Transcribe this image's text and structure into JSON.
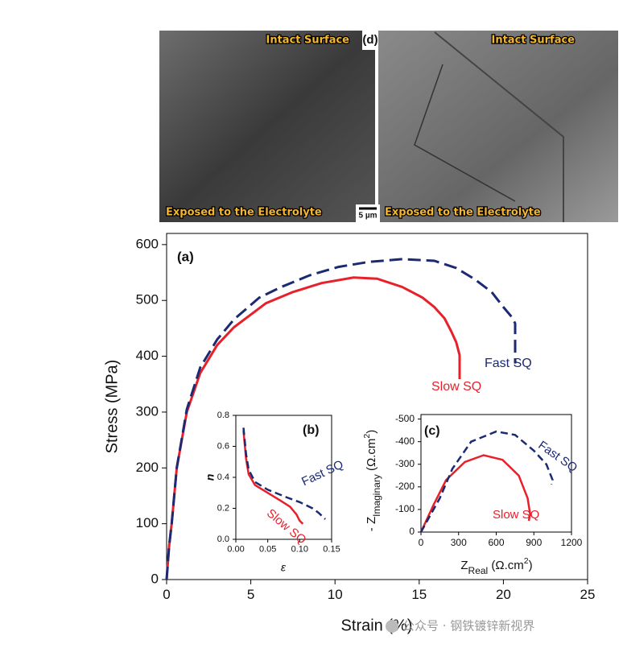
{
  "figure_panel": {
    "panel_label": "(d)",
    "left_top": "Intact Surface",
    "left_bottom": "Exposed to the Electrolyte",
    "right_top": "Intact Surface",
    "right_bottom": "Exposed to the Electrolyte",
    "scale_bar": "5 µm"
  },
  "watermark": "公众号 · 钢铁镀锌新视界",
  "chart_data": [
    {
      "type": "line",
      "panel_label": "(a)",
      "xlabel": "Strain (%)",
      "ylabel": "Stress (MPa)",
      "xlim": [
        0,
        25
      ],
      "ylim": [
        0,
        620
      ],
      "xticks": [
        0,
        5,
        10,
        15,
        20,
        25
      ],
      "yticks": [
        0,
        100,
        200,
        300,
        400,
        500,
        600
      ],
      "series": [
        {
          "name": "Slow SQ",
          "color": "#e8202a",
          "linestyle": "solid",
          "x": [
            0,
            0.15,
            0.3,
            0.6,
            1.2,
            2,
            3,
            4,
            5.9,
            7.5,
            9.2,
            11.1,
            12.5,
            14,
            15.2,
            15.9,
            16.5,
            16.9,
            17.2,
            17.4,
            17.4
          ],
          "values": [
            0,
            60,
            100,
            200,
            300,
            370,
            420,
            452,
            495,
            515,
            531,
            541,
            539,
            524,
            505,
            488,
            468,
            445,
            425,
            402,
            359
          ]
        },
        {
          "name": "Fast SQ",
          "color": "#1b2a72",
          "linestyle": "dashed",
          "x": [
            0,
            0.15,
            0.3,
            0.6,
            1.2,
            2,
            3,
            4,
            5.5,
            6.8,
            8.5,
            10.2,
            12,
            14,
            15.9,
            17.2,
            18.3,
            19.3,
            20,
            20.5,
            20.7,
            20.7
          ],
          "values": [
            0,
            60,
            100,
            200,
            305,
            380,
            430,
            466,
            505,
            524,
            545,
            560,
            569,
            574,
            571,
            558,
            538,
            515,
            488,
            470,
            459,
            387
          ]
        }
      ]
    },
    {
      "type": "line",
      "panel_label": "(b)",
      "xlabel": "ε",
      "ylabel": "n",
      "xlim": [
        0,
        0.15
      ],
      "ylim": [
        0,
        0.8
      ],
      "xticks": [
        {
          "value": 0,
          "label": "0.00"
        },
        0.05,
        {
          "value": 0.1,
          "label": "0.10"
        },
        0.15
      ],
      "yticks": [
        {
          "value": 0,
          "label": "0.0"
        },
        0.2,
        0.4,
        0.6,
        0.8
      ],
      "series": [
        {
          "name": "Slow SQ",
          "color": "#e8202a",
          "linestyle": "solid",
          "x": [
            0.012,
            0.016,
            0.02,
            0.03,
            0.05,
            0.07,
            0.085,
            0.095,
            0.1,
            0.105
          ],
          "values": [
            0.7,
            0.52,
            0.42,
            0.35,
            0.3,
            0.25,
            0.21,
            0.16,
            0.12,
            0.1
          ]
        },
        {
          "name": "Fast SQ",
          "color": "#1b2a72",
          "linestyle": "dashed",
          "x": [
            0.012,
            0.016,
            0.02,
            0.03,
            0.05,
            0.08,
            0.1,
            0.12,
            0.13,
            0.14
          ],
          "values": [
            0.72,
            0.55,
            0.45,
            0.37,
            0.32,
            0.27,
            0.24,
            0.2,
            0.17,
            0.13
          ]
        }
      ]
    },
    {
      "type": "line",
      "panel_label": "(c)",
      "xlabel": [
        "Z",
        "Real",
        " (Ω.cm",
        "2",
        ")"
      ],
      "ylabel": [
        "- Z",
        "Imaginary",
        " (Ω.cm",
        "2",
        ")"
      ],
      "xlim": [
        0,
        1200
      ],
      "ylim": [
        0,
        -520
      ],
      "xticks": [
        0,
        300,
        600,
        900,
        1200
      ],
      "yticks": [
        0,
        -100,
        -200,
        -300,
        -400,
        -500
      ],
      "series": [
        {
          "name": "Slow SQ",
          "color": "#e8202a",
          "linestyle": "solid",
          "x": [
            0,
            100,
            200,
            350,
            500,
            650,
            780,
            850,
            870,
            860
          ],
          "values": [
            0,
            -120,
            -230,
            -310,
            -340,
            -320,
            -250,
            -150,
            -80,
            -50
          ]
        },
        {
          "name": "Fast SQ",
          "color": "#1b2a72",
          "linestyle": "dashed",
          "x": [
            0,
            150,
            250,
            400,
            600,
            750,
            900,
            1000,
            1050,
            1040
          ],
          "values": [
            0,
            -150,
            -280,
            -400,
            -445,
            -430,
            -360,
            -300,
            -230,
            -210
          ]
        }
      ]
    }
  ]
}
